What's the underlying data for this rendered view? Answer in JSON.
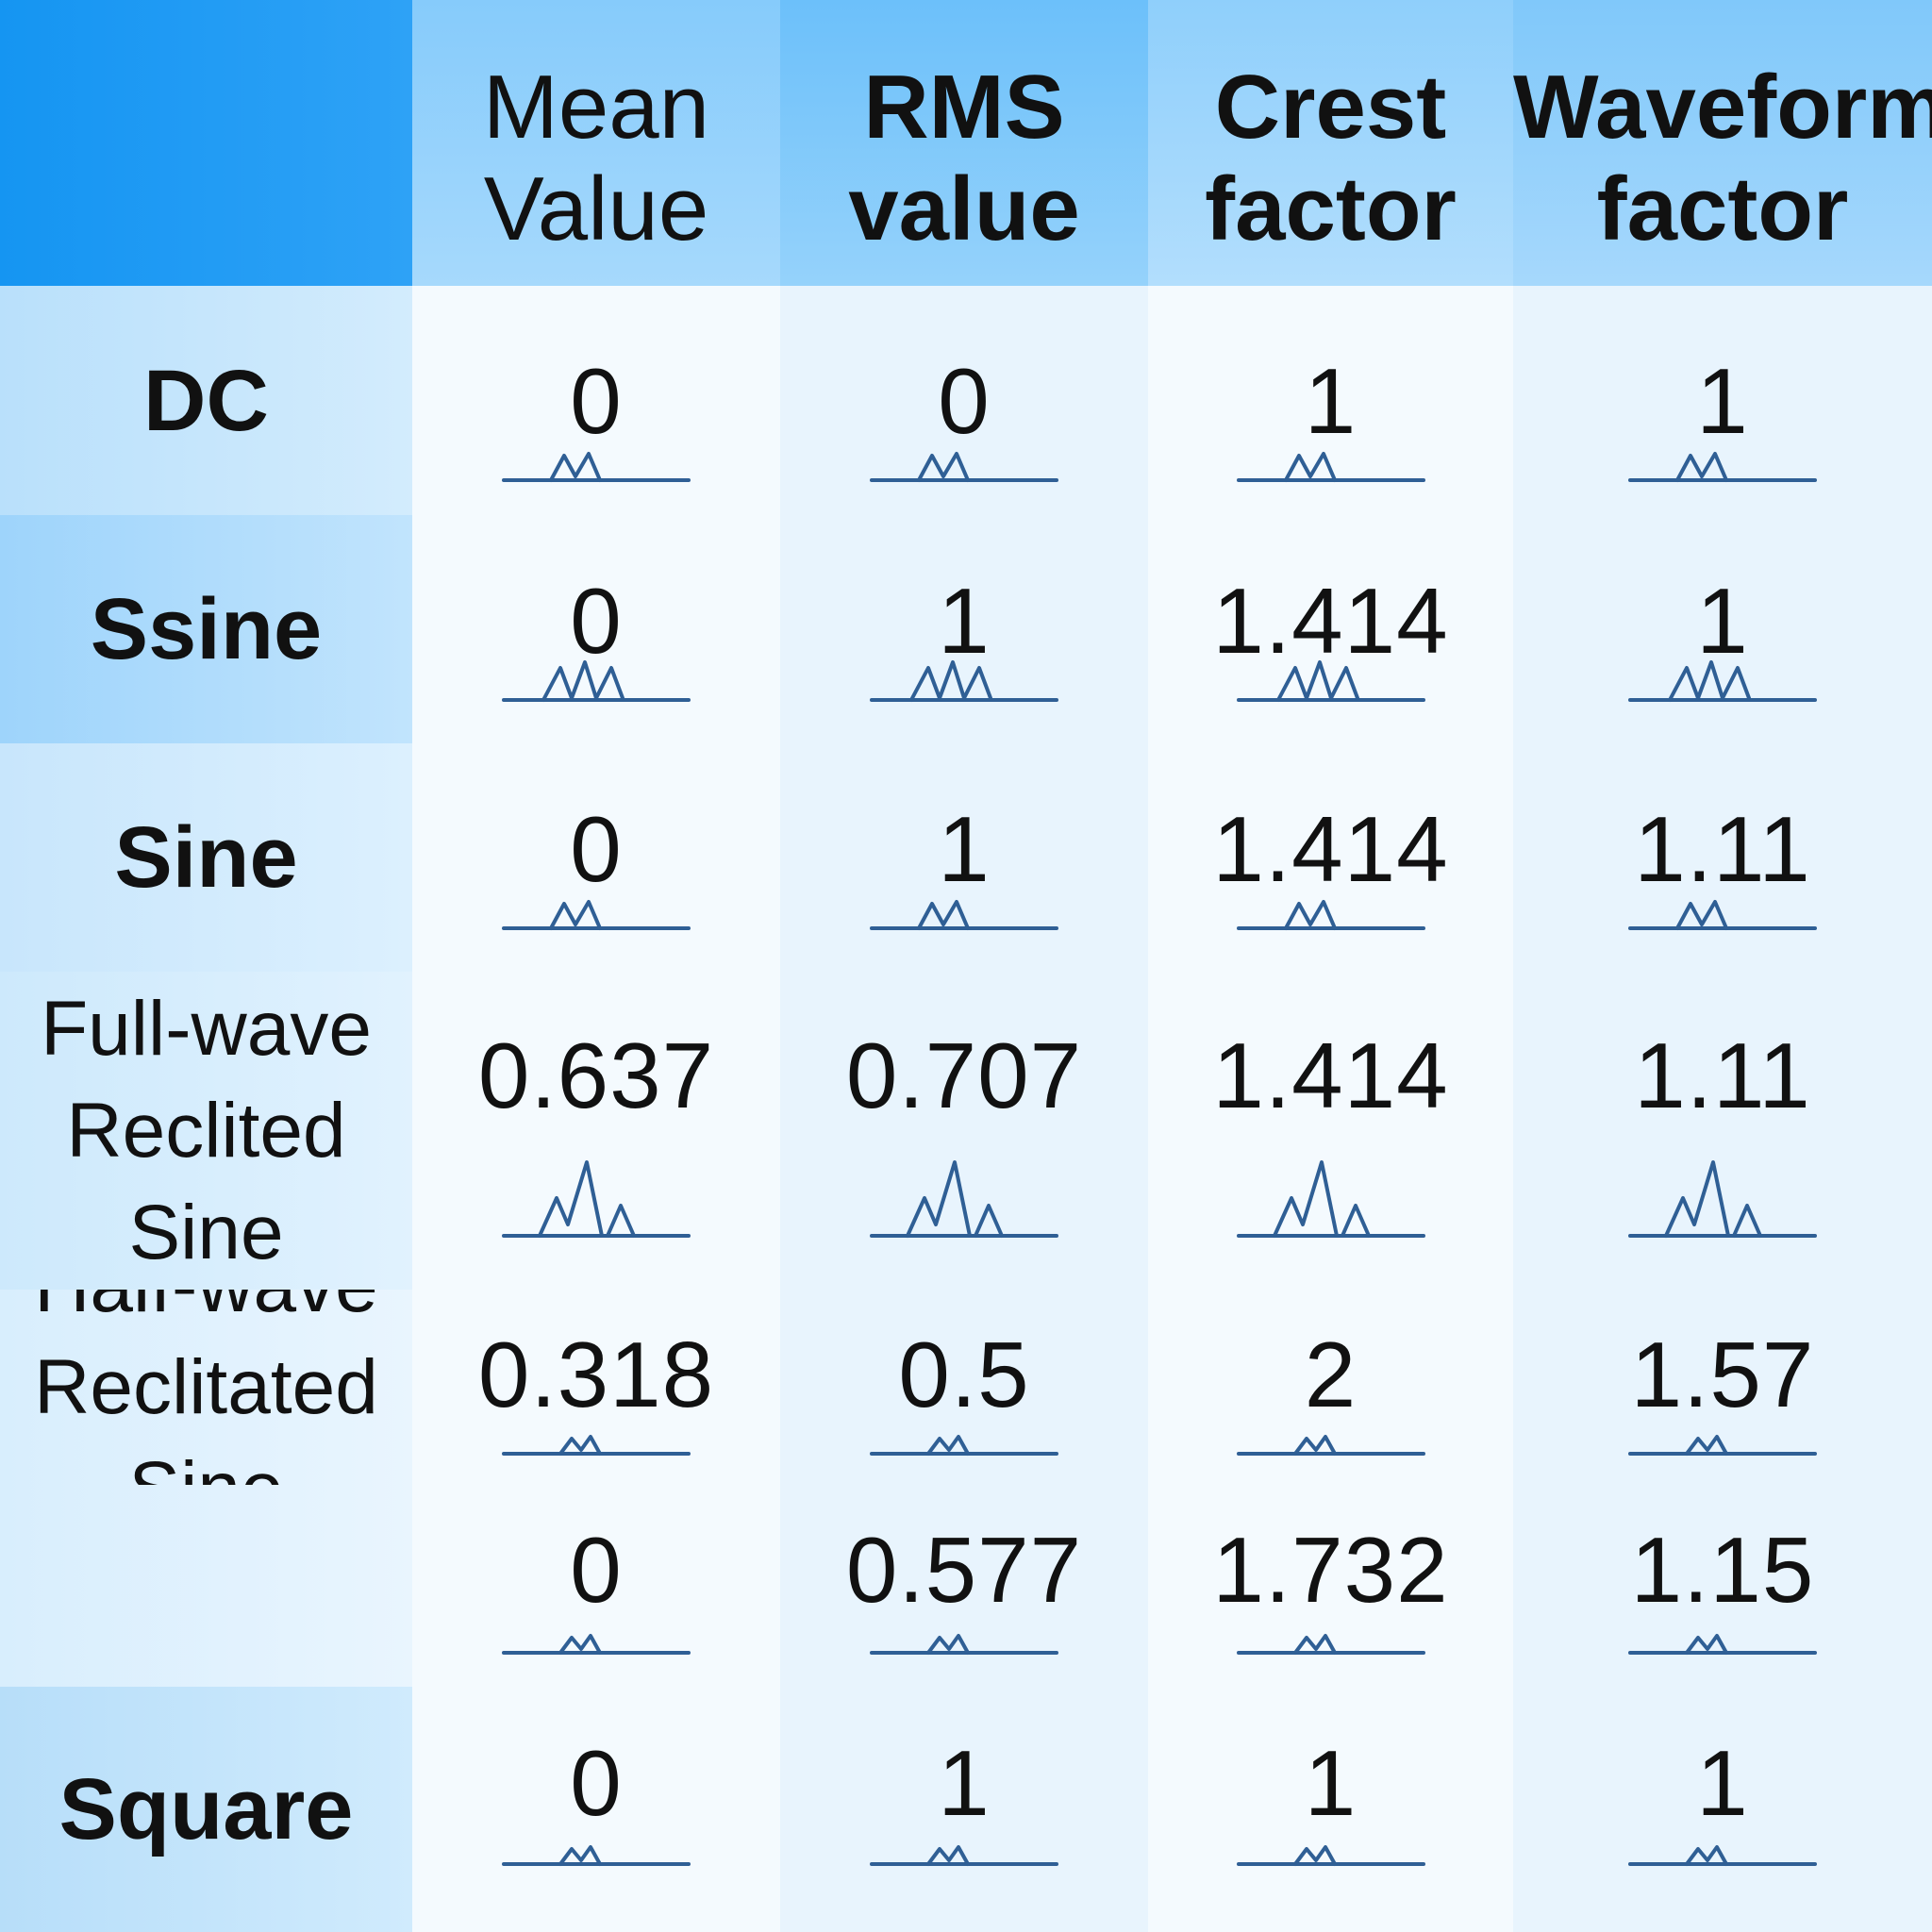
{
  "table": {
    "columns": [
      "",
      "Mean\nValue",
      "RMS\nvalue",
      "Crest\nfactor",
      "Waveform\nfactor"
    ],
    "rows": [
      {
        "label": "DC",
        "values": [
          "0",
          "0",
          "1",
          "1"
        ]
      },
      {
        "label": "Ssine",
        "values": [
          "0",
          "1",
          "1.414",
          "1"
        ]
      },
      {
        "label": "Sine",
        "values": [
          "0",
          "1",
          "1.414",
          "1.11"
        ]
      },
      {
        "label": "Full-wave\nReclited\nSine",
        "values": [
          "0.637",
          "0.707",
          "1.414",
          "1.11"
        ]
      },
      {
        "label": "Half-wave\nReclitated\nSine",
        "values": [
          "0.318",
          "0.5",
          "2",
          "1.57"
        ]
      },
      {
        "label": "",
        "values": [
          "0",
          "0.577",
          "1.732",
          "1.15"
        ]
      },
      {
        "label": "Square",
        "values": [
          "0",
          "1",
          "1",
          "1"
        ]
      }
    ]
  },
  "colors": {
    "header_corner": "#1595f2",
    "header": "#8ccdfb",
    "wave_stroke": "#2f5f95",
    "cell_bg": "#f4fafe"
  },
  "icons": {
    "waveform": "waveform-glyph"
  }
}
